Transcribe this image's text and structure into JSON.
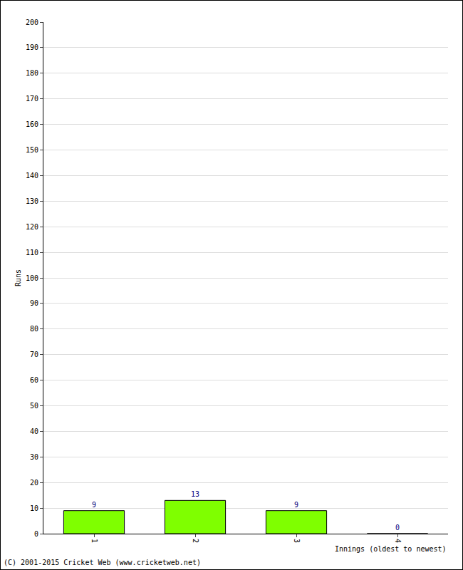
{
  "chart_data": {
    "type": "bar",
    "x_label": "Innings (oldest to newest)",
    "y_label": "Runs",
    "categories": [
      "1",
      "2",
      "3",
      "4"
    ],
    "values": [
      9,
      13,
      9,
      0
    ],
    "color": "#7fff00",
    "data_labels": true,
    "ylim": [
      0,
      200
    ],
    "yticks": [
      0,
      10,
      20,
      30,
      40,
      50,
      60,
      70,
      80,
      90,
      100,
      110,
      120,
      130,
      140,
      150,
      160,
      170,
      180,
      190,
      200
    ],
    "grid": true,
    "annotations": [
      "(C) 2001-2015 Cricket Web (www.cricketweb.net)"
    ]
  }
}
